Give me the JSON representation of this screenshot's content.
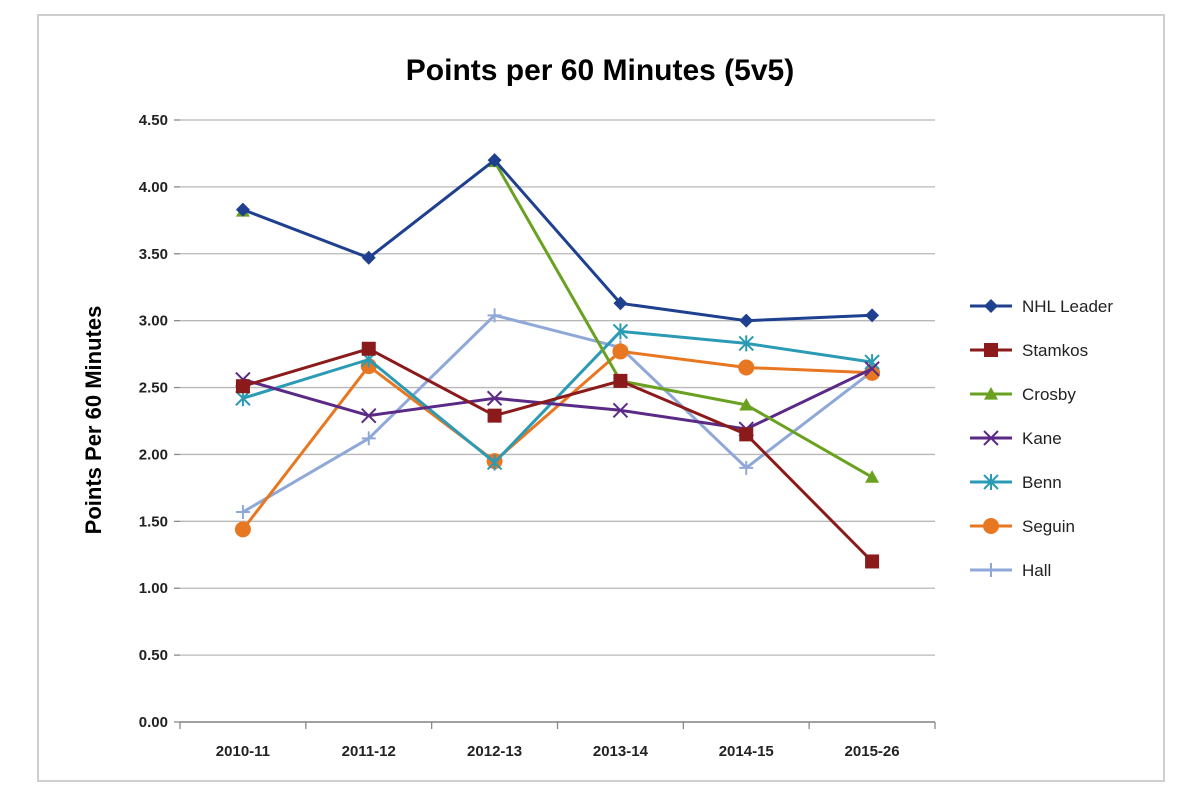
{
  "chart_data": {
    "type": "line",
    "title": "Points per 60 Minutes (5v5)",
    "xlabel": "",
    "ylabel": "Points Per 60 Minutes",
    "categories": [
      "2010-11",
      "2011-12",
      "2012-13",
      "2013-14",
      "2014-15",
      "2015-26"
    ],
    "ylim": [
      0,
      4.5
    ],
    "yticks": [
      "0.00",
      "0.50",
      "1.00",
      "1.50",
      "2.00",
      "2.50",
      "3.00",
      "3.50",
      "4.00",
      "4.50"
    ],
    "grid": true,
    "legend": "right",
    "series": [
      {
        "name": "NHL Leader",
        "color": "#1f3f8f",
        "marker": "diamond",
        "values": [
          3.83,
          3.47,
          4.2,
          3.13,
          3.0,
          3.04
        ]
      },
      {
        "name": "Stamkos",
        "color": "#8b1a1a",
        "marker": "square",
        "values": [
          2.51,
          2.79,
          2.29,
          2.55,
          2.15,
          1.2
        ]
      },
      {
        "name": "Crosby",
        "color": "#6aa121",
        "marker": "triangle",
        "values": [
          3.82,
          null,
          4.19,
          2.55,
          2.37,
          1.83
        ]
      },
      {
        "name": "Kane",
        "color": "#5b2a86",
        "marker": "x",
        "values": [
          2.56,
          2.29,
          2.42,
          2.33,
          2.19,
          2.64
        ]
      },
      {
        "name": "Benn",
        "color": "#2b9bb5",
        "marker": "star",
        "values": [
          2.42,
          2.71,
          1.94,
          2.92,
          2.83,
          2.69
        ]
      },
      {
        "name": "Seguin",
        "color": "#e87722",
        "marker": "circle",
        "values": [
          1.44,
          2.66,
          1.95,
          2.77,
          2.65,
          2.61
        ]
      },
      {
        "name": "Hall",
        "color": "#8fa8d8",
        "marker": "plus",
        "values": [
          1.57,
          2.12,
          3.04,
          2.8,
          1.9,
          2.62
        ]
      }
    ]
  }
}
